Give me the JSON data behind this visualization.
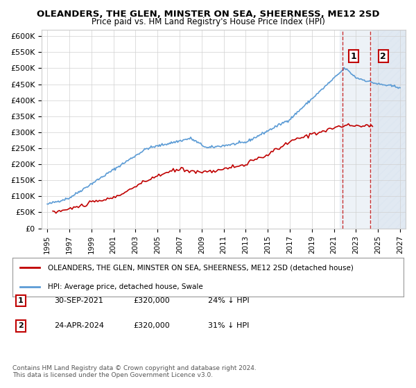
{
  "title": "OLEANDERS, THE GLEN, MINSTER ON SEA, SHEERNESS, ME12 2SD",
  "subtitle": "Price paid vs. HM Land Registry's House Price Index (HPI)",
  "ylabel_ticks": [
    "£0",
    "£50K",
    "£100K",
    "£150K",
    "£200K",
    "£250K",
    "£300K",
    "£350K",
    "£400K",
    "£450K",
    "£500K",
    "£550K",
    "£600K"
  ],
  "ytick_values": [
    0,
    50000,
    100000,
    150000,
    200000,
    250000,
    300000,
    350000,
    400000,
    450000,
    500000,
    550000,
    600000
  ],
  "legend_line1": "OLEANDERS, THE GLEN, MINSTER ON SEA, SHEERNESS, ME12 2SD (detached house)",
  "legend_line2": "HPI: Average price, detached house, Swale",
  "annotation1_label": "1",
  "annotation1_date": "30-SEP-2021",
  "annotation1_price": "£320,000",
  "annotation1_hpi": "24% ↓ HPI",
  "annotation2_label": "2",
  "annotation2_date": "24-APR-2024",
  "annotation2_price": "£320,000",
  "annotation2_hpi": "31% ↓ HPI",
  "footer": "Contains HM Land Registry data © Crown copyright and database right 2024.\nThis data is licensed under the Open Government Licence v3.0.",
  "hpi_color": "#5b9bd5",
  "price_color": "#c00000",
  "marker_color_1": "#c00000",
  "marker_color_2": "#c00000",
  "annotation_box_color": "#c00000",
  "shaded_region_color": "#dce6f1",
  "hatch_region_color": "#dce6f1",
  "background_color": "#ffffff",
  "grid_color": "#d0d0d0"
}
